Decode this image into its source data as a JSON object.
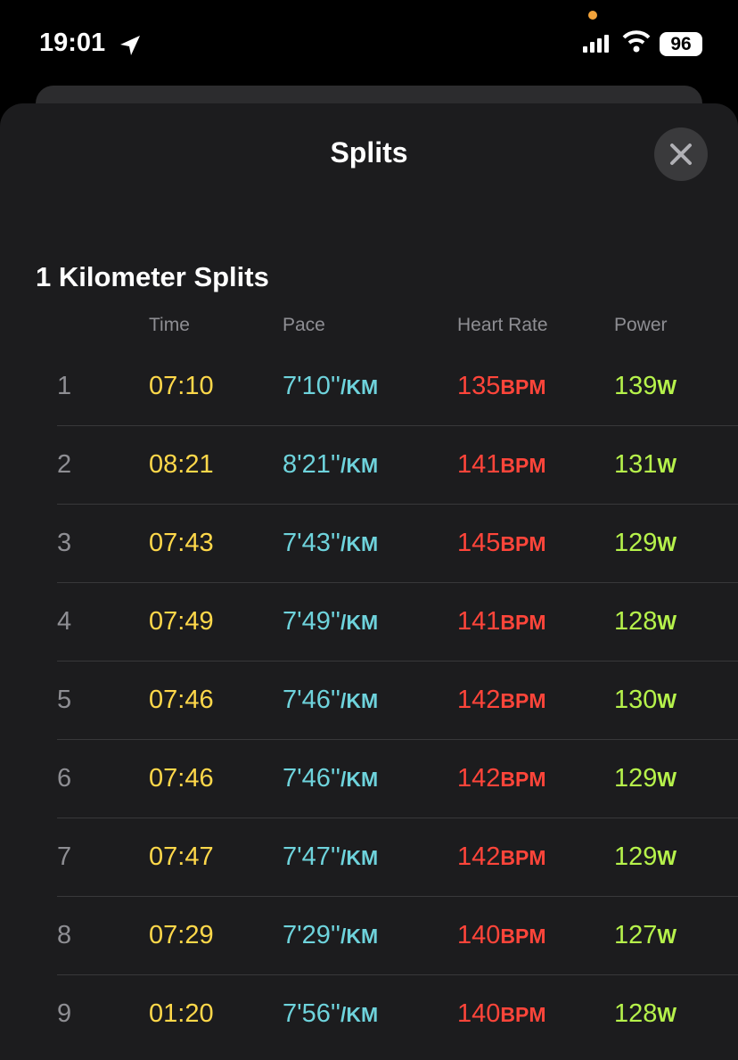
{
  "status_bar": {
    "time": "19:01",
    "battery": "96"
  },
  "sheet": {
    "title": "Splits"
  },
  "splits": {
    "title": "1 Kilometer Splits",
    "columns": [
      {
        "header": "Time"
      },
      {
        "header": "Pace",
        "unit": "/KM"
      },
      {
        "header": "Heart Rate",
        "unit": "BPM"
      },
      {
        "header": "Power",
        "unit": "W"
      }
    ],
    "rows": [
      [
        "1",
        "07:10",
        "7'10''",
        "135",
        "139"
      ],
      [
        "2",
        "08:21",
        "8'21''",
        "141",
        "131"
      ],
      [
        "3",
        "07:43",
        "7'43''",
        "145",
        "129"
      ],
      [
        "4",
        "07:49",
        "7'49''",
        "141",
        "128"
      ],
      [
        "5",
        "07:46",
        "7'46''",
        "142",
        "130"
      ],
      [
        "6",
        "07:46",
        "7'46''",
        "142",
        "129"
      ],
      [
        "7",
        "07:47",
        "7'47''",
        "142",
        "129"
      ],
      [
        "8",
        "07:29",
        "7'29''",
        "140",
        "127"
      ],
      [
        "9",
        "01:20",
        "7'56''",
        "140",
        "128"
      ]
    ]
  }
}
